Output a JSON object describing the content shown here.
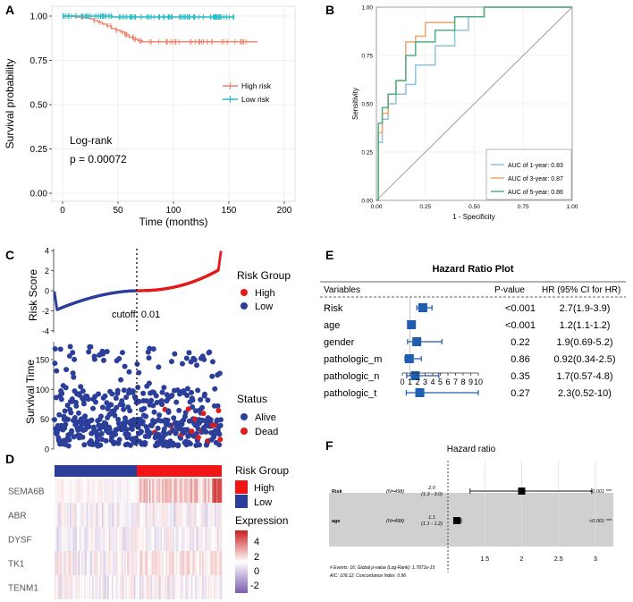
{
  "panels": {
    "A": "A",
    "B": "B",
    "C": "C",
    "D": "D",
    "E": "E",
    "F": "F"
  },
  "colors": {
    "high": "#F08068",
    "low": "#26BDC3",
    "scatterHigh": "#E31A1C",
    "scatterLow": "#2B3F9A",
    "roc1": "#8EC3DD",
    "roc3": "#F5A46A",
    "roc5": "#4DB084",
    "forest": "#1F5DB1",
    "heatHigh": "#CC1E1E",
    "heatLow": "#7B5CB0"
  },
  "chart_data": [
    {
      "id": "A",
      "type": "line",
      "title": "",
      "xlabel": "Time (months)",
      "ylabel": "Survival probability",
      "xlim": [
        0,
        200
      ],
      "ylim": [
        0,
        1
      ],
      "xticks": [
        "0",
        "50",
        "100",
        "150",
        "200"
      ],
      "yticks": [
        "0.00",
        "0.25",
        "0.50",
        "0.75",
        "1.00"
      ],
      "legend": [
        "High risk",
        "Low risk"
      ],
      "annotation": [
        "Log-rank",
        "p = 0.00072"
      ],
      "series": [
        {
          "name": "High risk",
          "x": [
            0,
            12,
            18,
            24,
            28,
            32,
            36,
            40,
            44,
            48,
            52,
            56,
            60,
            64,
            68,
            72,
            176
          ],
          "y": [
            1.0,
            0.995,
            0.99,
            0.985,
            0.975,
            0.965,
            0.955,
            0.945,
            0.93,
            0.92,
            0.91,
            0.895,
            0.88,
            0.87,
            0.86,
            0.855,
            0.855
          ]
        },
        {
          "name": "Low risk",
          "x": [
            0,
            40,
            45,
            155
          ],
          "y": [
            1.0,
            1.0,
            0.995,
            0.995
          ]
        }
      ]
    },
    {
      "id": "B",
      "type": "line",
      "xlabel": "1 - Specificity",
      "ylabel": "Sensitivity",
      "xlim": [
        0,
        1
      ],
      "ylim": [
        0,
        1
      ],
      "xticks": [
        "0.00",
        "0.25",
        "0.50",
        "0.75",
        "1.00"
      ],
      "yticks": [
        "0.00",
        "0.25",
        "0.50",
        "0.75",
        "1.00"
      ],
      "series": [
        {
          "name": "AUC of 1-year: 0.83",
          "x": [
            0,
            0.01,
            0.01,
            0.03,
            0.03,
            0.06,
            0.06,
            0.1,
            0.1,
            0.15,
            0.15,
            0.2,
            0.2,
            0.3,
            0.3,
            0.4,
            0.4,
            0.47,
            0.47,
            0.55,
            0.55,
            1.0
          ],
          "y": [
            0,
            0,
            0.3,
            0.3,
            0.42,
            0.42,
            0.5,
            0.5,
            0.55,
            0.55,
            0.6,
            0.6,
            0.7,
            0.7,
            0.8,
            0.8,
            0.88,
            0.88,
            0.95,
            0.95,
            1.0,
            1.0
          ]
        },
        {
          "name": "AUC of 3-year: 0.87",
          "x": [
            0,
            0.01,
            0.01,
            0.03,
            0.03,
            0.06,
            0.06,
            0.1,
            0.1,
            0.15,
            0.15,
            0.2,
            0.2,
            0.25,
            0.25,
            0.4,
            0.4,
            0.55,
            0.55,
            1.0
          ],
          "y": [
            0,
            0,
            0.35,
            0.35,
            0.45,
            0.45,
            0.55,
            0.55,
            0.62,
            0.62,
            0.82,
            0.82,
            0.85,
            0.85,
            0.92,
            0.92,
            0.95,
            0.95,
            1.0,
            1.0
          ]
        },
        {
          "name": "AUC of 5-year: 0.86",
          "x": [
            0,
            0.01,
            0.01,
            0.03,
            0.03,
            0.06,
            0.06,
            0.1,
            0.1,
            0.15,
            0.15,
            0.2,
            0.2,
            0.3,
            0.3,
            0.4,
            0.4,
            0.55,
            0.55,
            1.0
          ],
          "y": [
            0,
            0,
            0.4,
            0.4,
            0.48,
            0.48,
            0.55,
            0.55,
            0.62,
            0.62,
            0.75,
            0.75,
            0.82,
            0.82,
            0.88,
            0.88,
            0.95,
            0.95,
            1.0,
            1.0
          ]
        }
      ],
      "legend": [
        "AUC of 1-year: 0.83",
        "AUC of 3-year: 0.87",
        "AUC of 5-year: 0.86"
      ]
    },
    {
      "id": "C1",
      "type": "scatter",
      "ylabel": "Risk Score",
      "yticks": [
        "-4",
        "-2",
        "0",
        "2",
        "4"
      ],
      "ylim": [
        -4.2,
        4.2
      ],
      "cutoff_label": "cutoff: 0.01",
      "legend_title": "Risk Group",
      "legend": [
        "High",
        "Low"
      ],
      "n": 498,
      "cutoff_index": 249
    },
    {
      "id": "C2",
      "type": "scatter",
      "ylabel": "Survival Time",
      "yticks": [
        "0",
        "50",
        "100",
        "150"
      ],
      "ylim": [
        0,
        180
      ],
      "legend_title": "Status",
      "legend": [
        "Alive",
        "Dead"
      ],
      "n": 498
    },
    {
      "id": "D",
      "type": "heatmap",
      "rows": [
        "SEMA6B",
        "ABR",
        "DYSF",
        "TK1",
        "TENM1"
      ],
      "legend_title_group": "Risk Group",
      "group_legend": [
        "High",
        "Low"
      ],
      "legend_title_expr": "Expression",
      "scale_ticks": [
        "4",
        "2",
        "0",
        "-2"
      ],
      "n": 498,
      "cutoff_index": 249
    },
    {
      "id": "E",
      "type": "table",
      "title": "Hazard Ratio Plot",
      "headers": [
        "Variables",
        "P-value",
        "HR (95% CI for HR)"
      ],
      "rows": [
        {
          "var": "Risk",
          "p": "<0.001",
          "hr": "2.7(1.9-3.9)",
          "est": 2.7,
          "lo": 1.9,
          "hi": 3.9
        },
        {
          "var": "age",
          "p": "<0.001",
          "hr": "1.2(1.1-1.2)",
          "est": 1.2,
          "lo": 1.1,
          "hi": 1.2
        },
        {
          "var": "gender",
          "p": "0.22",
          "hr": "1.9(0.69-5.2)",
          "est": 1.9,
          "lo": 0.69,
          "hi": 5.2
        },
        {
          "var": "pathologic_m",
          "p": "0.86",
          "hr": "0.92(0.34-2.5)",
          "est": 0.92,
          "lo": 0.34,
          "hi": 2.5
        },
        {
          "var": "pathologic_n",
          "p": "0.35",
          "hr": "1.7(0.57-4.8)",
          "est": 1.7,
          "lo": 0.57,
          "hi": 4.8
        },
        {
          "var": "pathologic_t",
          "p": "0.27",
          "hr": "2.3(0.52-10)",
          "est": 2.3,
          "lo": 0.52,
          "hi": 10
        }
      ],
      "xticks": [
        "0",
        "1",
        "2",
        "3",
        "4",
        "5",
        "6",
        "7",
        "8",
        "9",
        "10"
      ],
      "xlim": [
        0,
        10
      ]
    },
    {
      "id": "F",
      "type": "scatter",
      "title": "Hazard ratio",
      "rows": [
        {
          "label": "Risk",
          "n": "(N=498)",
          "hr": "2.0",
          "ci": "(1.3 - 3.0)",
          "p": "<0.001 ***",
          "est": 2.0,
          "lo": 1.3,
          "hi": 2.95
        },
        {
          "label": "age",
          "n": "(N=498)",
          "hr": "1.1",
          "ci": "(1.1 - 1.2)",
          "p": "<0.001 ***",
          "est": 1.12,
          "lo": 1.08,
          "hi": 1.18
        }
      ],
      "xlim": [
        1,
        3
      ],
      "xticks": [
        "1.5",
        "2",
        "2.5",
        "3"
      ],
      "footer": [
        "# Events: 16; Global p-value (Log-Rank): 1.7871e-15",
        "AIC: 109.12; Concordance Index: 0.96"
      ]
    }
  ]
}
